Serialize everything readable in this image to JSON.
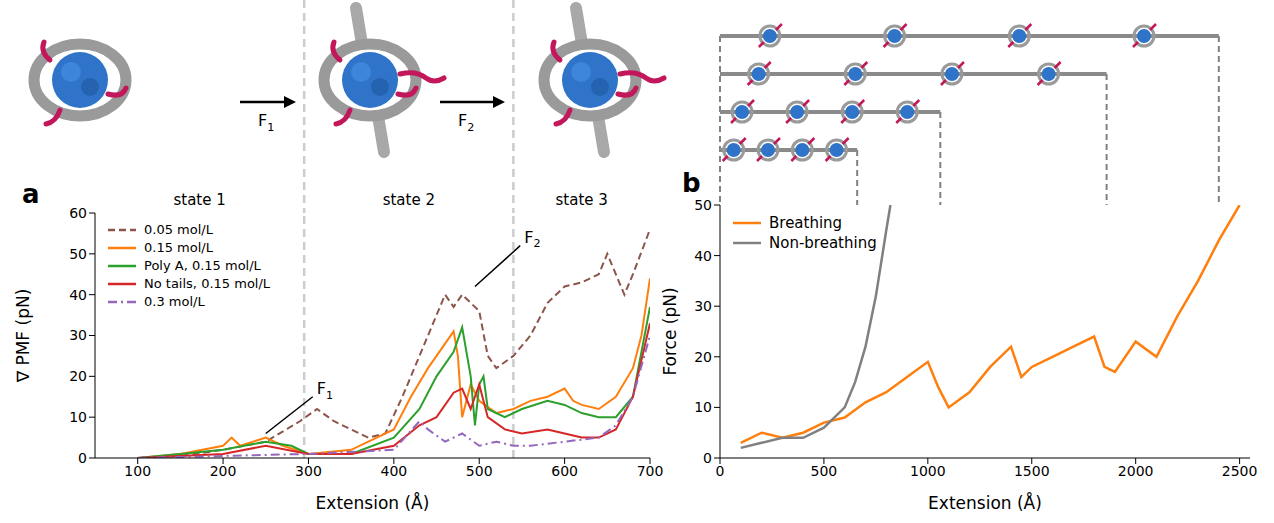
{
  "chart_data": [
    {
      "type": "line",
      "panel": "a",
      "x_label": "Extension (Å)",
      "y_label": "∇ PMF (pN)",
      "xlim": [
        50,
        700
      ],
      "xticks": [
        100,
        200,
        300,
        400,
        500,
        600,
        700
      ],
      "ylim": [
        0,
        60
      ],
      "yticks": [
        0,
        10,
        20,
        30,
        40,
        50,
        60
      ],
      "legend": "upper left",
      "states": [
        "state 1",
        "state 2",
        "state 3"
      ],
      "state_boundaries": [
        295,
        540
      ],
      "annotations": [
        {
          "text": "F1",
          "x": 305,
          "y": 15,
          "target": [
            250,
            6
          ]
        },
        {
          "text": "F2",
          "x": 548,
          "y": 52,
          "target": [
            495,
            42
          ]
        }
      ],
      "series": [
        {
          "name": "0.05 mol/L",
          "color": "#8c564b",
          "line_style": "dashed",
          "x": [
            100,
            150,
            200,
            250,
            290,
            310,
            330,
            350,
            370,
            390,
            410,
            430,
            450,
            460,
            470,
            480,
            490,
            500,
            510,
            520,
            540,
            560,
            580,
            600,
            620,
            640,
            650,
            660,
            670,
            680,
            700
          ],
          "values": [
            0,
            0.5,
            2,
            4,
            9,
            12,
            9,
            7,
            5,
            6,
            15,
            25,
            35,
            40,
            37,
            40,
            38,
            36,
            25,
            22,
            25,
            30,
            38,
            42,
            43,
            45,
            50,
            45,
            40,
            45,
            56
          ]
        },
        {
          "name": "0.15 mol/L",
          "color": "#ff7f0e",
          "line_style": "solid",
          "x": [
            100,
            150,
            200,
            210,
            220,
            250,
            270,
            300,
            350,
            400,
            420,
            440,
            460,
            470,
            475,
            480,
            490,
            500,
            520,
            540,
            560,
            580,
            600,
            610,
            620,
            640,
            660,
            680,
            690,
            700
          ],
          "values": [
            0,
            1,
            3,
            5,
            3,
            5,
            3,
            1,
            2,
            7,
            15,
            22,
            28,
            31,
            25,
            10,
            18,
            14,
            11,
            12,
            14,
            15,
            17,
            14,
            13,
            12,
            15,
            22,
            30,
            44
          ]
        },
        {
          "name": "Poly A, 0.15 mol/L",
          "color": "#2ca02c",
          "line_style": "solid",
          "x": [
            100,
            150,
            200,
            250,
            280,
            300,
            350,
            400,
            430,
            450,
            470,
            480,
            490,
            495,
            500,
            505,
            510,
            530,
            550,
            580,
            600,
            620,
            640,
            660,
            680,
            700
          ],
          "values": [
            0,
            1,
            2,
            4,
            3,
            1,
            1,
            5,
            12,
            20,
            26,
            32,
            20,
            8,
            18,
            20,
            12,
            10,
            12,
            14,
            13,
            11,
            10,
            10,
            15,
            37
          ]
        },
        {
          "name": "No tails, 0.15 mol/L",
          "color": "#d62728",
          "line_style": "solid",
          "x": [
            100,
            200,
            250,
            300,
            350,
            400,
            430,
            450,
            470,
            480,
            490,
            500,
            510,
            530,
            550,
            580,
            600,
            620,
            640,
            660,
            680,
            700
          ],
          "values": [
            0,
            1,
            3,
            1,
            1,
            3,
            8,
            10,
            16,
            17,
            12,
            18,
            10,
            7,
            6,
            7,
            6,
            5,
            5,
            7,
            15,
            33
          ]
        },
        {
          "name": "0.3 mol/L",
          "color": "#9467bd",
          "line_style": "dashdot",
          "x": [
            100,
            200,
            300,
            400,
            430,
            440,
            460,
            480,
            500,
            520,
            540,
            560,
            600,
            640,
            660,
            680,
            700
          ],
          "values": [
            0,
            0.5,
            1,
            2,
            9,
            7,
            4,
            6,
            3,
            4,
            3,
            3,
            4,
            5,
            8,
            15,
            30
          ]
        }
      ]
    },
    {
      "type": "line",
      "panel": "b",
      "x_label": "Extension (Å)",
      "y_label": "Force (pN)",
      "xlim": [
        0,
        2550
      ],
      "xticks": [
        0,
        500,
        1000,
        1500,
        2000,
        2500
      ],
      "ylim": [
        0,
        50
      ],
      "yticks": [
        0,
        10,
        20,
        30,
        40,
        50
      ],
      "legend": "upper left",
      "extension_markers": [
        660,
        1060,
        1860,
        2400
      ],
      "series": [
        {
          "name": "Breathing",
          "color": "#ff7f0e",
          "line_style": "solid",
          "x": [
            100,
            200,
            300,
            400,
            500,
            600,
            700,
            800,
            900,
            1000,
            1050,
            1100,
            1200,
            1300,
            1400,
            1450,
            1500,
            1600,
            1700,
            1800,
            1850,
            1900,
            2000,
            2100,
            2200,
            2300,
            2400,
            2500
          ],
          "values": [
            3,
            5,
            4,
            5,
            7,
            8,
            11,
            13,
            16,
            19,
            14,
            10,
            13,
            18,
            22,
            16,
            18,
            20,
            22,
            24,
            18,
            17,
            23,
            20,
            28,
            35,
            43,
            50
          ]
        },
        {
          "name": "Non-breathing",
          "color": "#808080",
          "line_style": "solid",
          "x": [
            100,
            200,
            300,
            400,
            500,
            600,
            650,
            700,
            750,
            800,
            820
          ],
          "values": [
            2,
            3,
            4,
            4,
            6,
            10,
            15,
            22,
            32,
            45,
            50
          ]
        }
      ]
    }
  ]
}
